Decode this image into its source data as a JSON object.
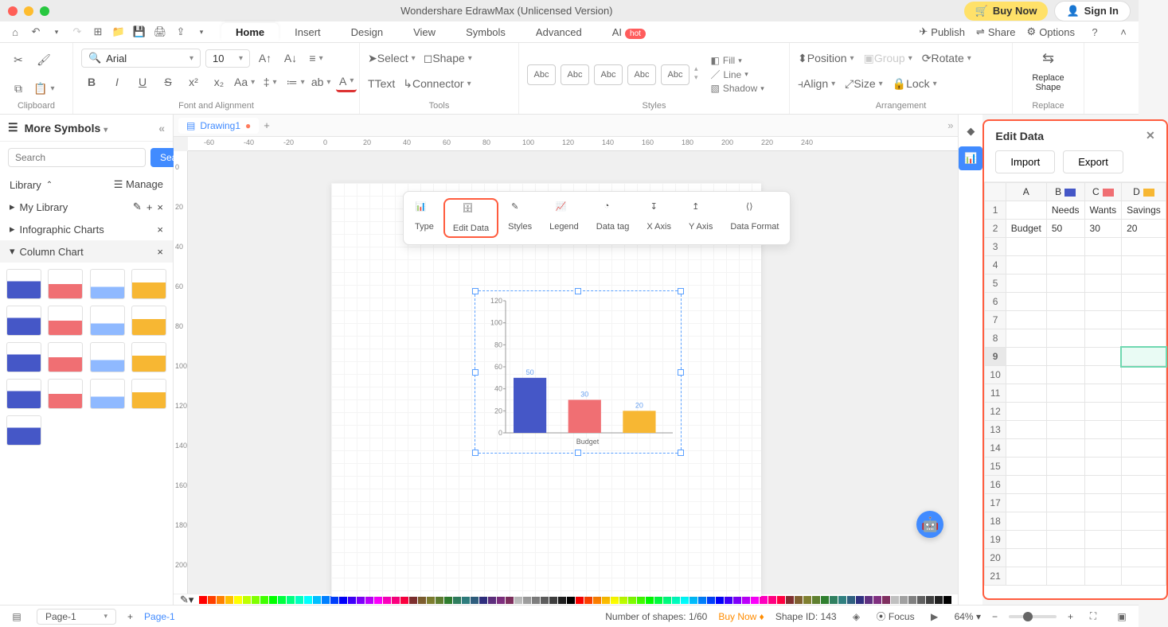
{
  "titlebar": {
    "title": "Wondershare EdrawMax (Unlicensed Version)",
    "traffic_colors": [
      "#ff5f57",
      "#febc2e",
      "#28c840"
    ],
    "buy_now": "Buy Now",
    "sign_in": "Sign In"
  },
  "menubar": {
    "tabs": [
      "Home",
      "Insert",
      "Design",
      "View",
      "Symbols",
      "Advanced",
      "AI"
    ],
    "active_tab": "Home",
    "hot_label": "hot",
    "right": {
      "publish": "Publish",
      "share": "Share",
      "options": "Options"
    }
  },
  "ribbon": {
    "clipboard_label": "Clipboard",
    "font_label": "Font and Alignment",
    "tools_label": "Tools",
    "styles_label": "Styles",
    "arrangement_label": "Arrangement",
    "replace_label": "Replace",
    "font_name": "Arial",
    "font_size": "10",
    "select_btn": "Select",
    "shape_btn": "Shape",
    "text_btn": "Text",
    "connector_btn": "Connector",
    "style_swatch_text": "Abc",
    "fill_btn": "Fill",
    "line_btn": "Line",
    "shadow_btn": "Shadow",
    "position_btn": "Position",
    "group_btn": "Group",
    "rotate_btn": "Rotate",
    "align_btn": "Align",
    "size_btn": "Size",
    "lock_btn": "Lock",
    "replace_shape": "Replace\nShape"
  },
  "leftpanel": {
    "header": "More Symbols",
    "search_placeholder": "Search",
    "search_btn": "Search",
    "library_label": "Library",
    "manage_label": "Manage",
    "my_library": "My Library",
    "infographic": "Infographic Charts",
    "column_chart": "Column Chart"
  },
  "doc_tabs": {
    "drawing": "Drawing1"
  },
  "ruler_h": [
    "-60",
    "-40",
    "-20",
    "0",
    "20",
    "40",
    "60",
    "80",
    "100",
    "120",
    "140",
    "160",
    "180",
    "200",
    "220",
    "240"
  ],
  "ruler_v": [
    "0",
    "20",
    "40",
    "60",
    "80",
    "100",
    "120",
    "140",
    "160",
    "180",
    "200"
  ],
  "float_toolbar": {
    "type": "Type",
    "edit_data": "Edit Data",
    "styles": "Styles",
    "legend": "Legend",
    "data_tag": "Data tag",
    "x_axis": "X Axis",
    "y_axis": "Y Axis",
    "data_format": "Data Format"
  },
  "chart": {
    "type": "bar",
    "categories": [
      "Needs",
      "Wants",
      "Savings"
    ],
    "values": [
      50,
      30,
      20
    ],
    "bar_colors": [
      "#4557c7",
      "#f06f73",
      "#f7b733"
    ],
    "x_label": "Budget",
    "ylim": [
      0,
      120
    ],
    "ytick_step": 20,
    "axis_color": "#999",
    "label_fontsize": 9,
    "value_label_color": "#67a0f0"
  },
  "editdata": {
    "title": "Edit Data",
    "import": "Import",
    "export": "Export",
    "columns": [
      "A",
      "B",
      "C",
      "D"
    ],
    "col_swatches": {
      "B": "#4557c7",
      "C": "#f06f73",
      "D": "#f7b733"
    },
    "rows_visible": 21,
    "data": {
      "1": {
        "B": "Needs",
        "C": "Wants",
        "D": "Savings"
      },
      "2": {
        "A": "Budget",
        "B": "50",
        "C": "30",
        "D": "20"
      }
    },
    "selected_row": 9,
    "selected_cell": [
      9,
      "D"
    ]
  },
  "statusbar": {
    "page_select": "Page-1",
    "page_tab": "Page-1",
    "shapes_count": "Number of shapes: 1/60",
    "buy_now": "Buy Now",
    "shape_id": "Shape ID: 143",
    "focus": "Focus",
    "zoom": "64%"
  },
  "colourbar": [
    "#ff0000",
    "#ff4000",
    "#ff8000",
    "#ffbf00",
    "#ffff00",
    "#bfff00",
    "#80ff00",
    "#40ff00",
    "#00ff00",
    "#00ff40",
    "#00ff80",
    "#00ffbf",
    "#00ffff",
    "#00bfff",
    "#0080ff",
    "#0040ff",
    "#0000ff",
    "#4000ff",
    "#8000ff",
    "#bf00ff",
    "#ff00ff",
    "#ff00bf",
    "#ff0080",
    "#ff0040",
    "#803030",
    "#806030",
    "#808030",
    "#608030",
    "#308030",
    "#308060",
    "#308080",
    "#306080",
    "#303080",
    "#603080",
    "#803080",
    "#803060",
    "#c0c0c0",
    "#a0a0a0",
    "#808080",
    "#606060",
    "#404040",
    "#202020",
    "#000000"
  ]
}
